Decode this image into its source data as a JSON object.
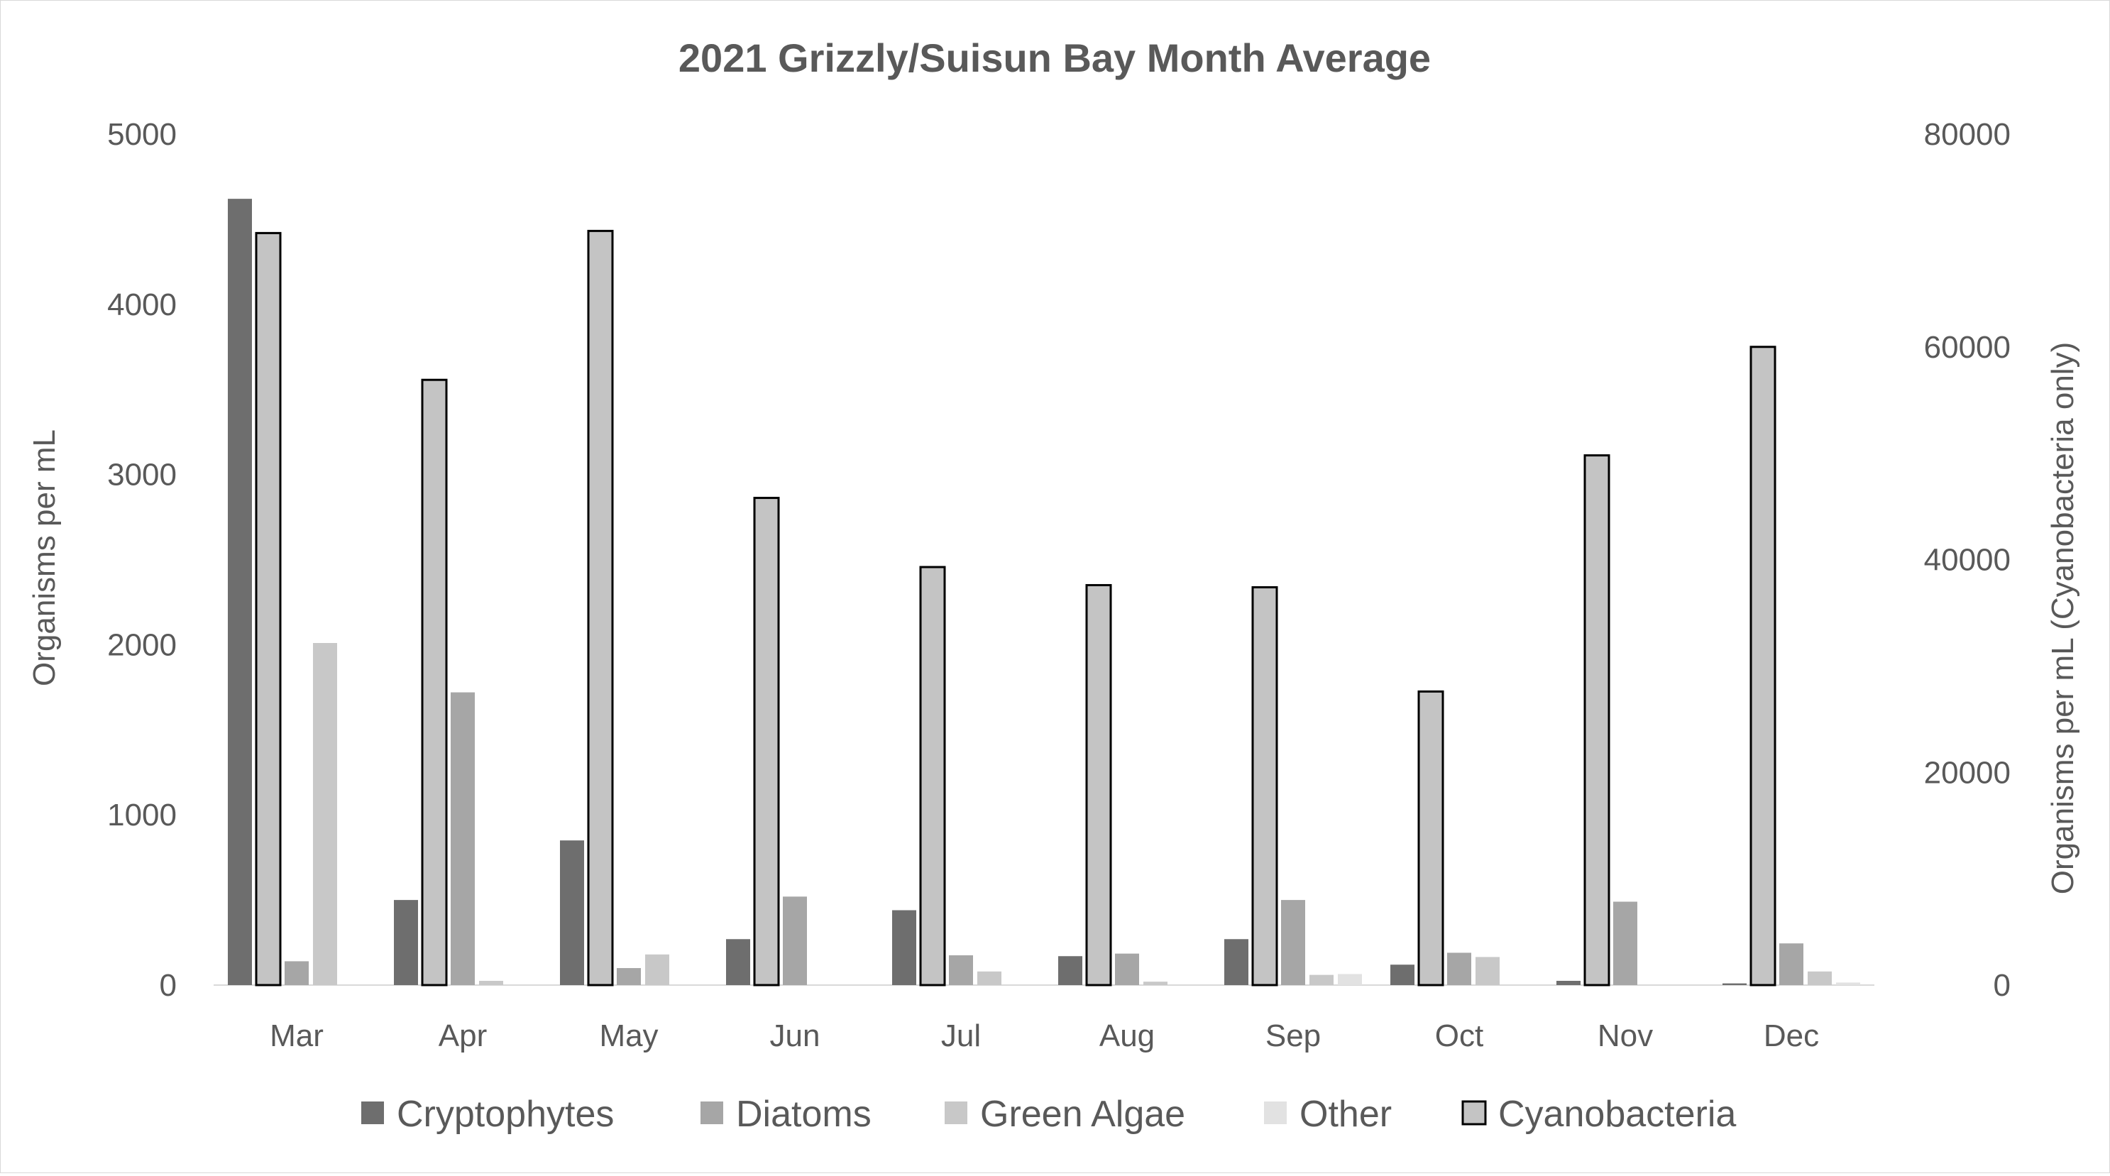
{
  "chart_data": {
    "type": "bar",
    "title": "2021 Grizzly/Suisun Bay Month Average",
    "ylabel": "Organisms per mL",
    "y2label": "Organisms per mL (Cyanobacteria only)",
    "categories": [
      "Mar",
      "Apr",
      "May",
      "Jun",
      "Jul",
      "Aug",
      "Sep",
      "Oct",
      "Nov",
      "Dec"
    ],
    "ylim": [
      0,
      5000
    ],
    "yticks": [
      "0",
      "1000",
      "2000",
      "3000",
      "4000",
      "5000"
    ],
    "y2lim": [
      0,
      80000
    ],
    "y2ticks": [
      "0",
      "20000",
      "40000",
      "60000",
      "80000"
    ],
    "grid": false,
    "legend_position": "bottom",
    "series": [
      {
        "name": "Cryptophytes",
        "axis": "primary",
        "color": "#6e6e6e",
        "outline": false,
        "values": [
          4620,
          500,
          850,
          270,
          440,
          170,
          270,
          120,
          25,
          10
        ]
      },
      {
        "name": "Cyanobacteria",
        "axis": "secondary",
        "color": "#c4c4c4",
        "outline": true,
        "values": [
          70700,
          56900,
          70900,
          45800,
          39300,
          37600,
          37400,
          27600,
          49800,
          60000
        ]
      },
      {
        "name": "Diatoms",
        "axis": "primary",
        "color": "#a6a6a6",
        "outline": false,
        "values": [
          140,
          1720,
          100,
          520,
          175,
          185,
          500,
          190,
          490,
          245
        ]
      },
      {
        "name": "Green Algae",
        "axis": "primary",
        "color": "#c8c8c8",
        "outline": false,
        "values": [
          2010,
          25,
          180,
          0,
          80,
          20,
          60,
          165,
          0,
          80
        ]
      },
      {
        "name": "Other",
        "axis": "primary",
        "color": "#e2e2e2",
        "outline": false,
        "values": [
          0,
          0,
          0,
          0,
          0,
          0,
          65,
          0,
          0,
          15
        ]
      }
    ],
    "legend_order": [
      "Cryptophytes",
      "Diatoms",
      "Green Algae",
      "Other",
      "Cyanobacteria"
    ]
  }
}
